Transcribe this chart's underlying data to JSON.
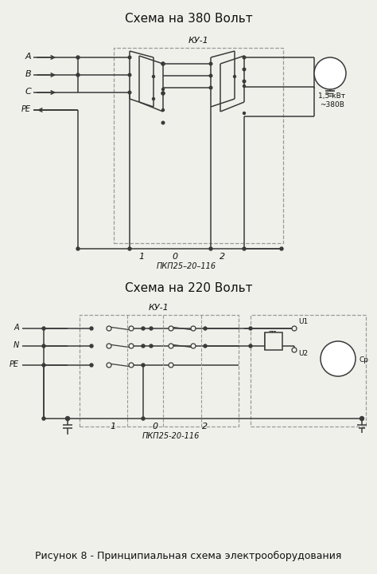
{
  "title1": "Схема на 380 Вольт",
  "title2": "Схема на 220 Вольт",
  "caption": "Рисунок 8 - Принципиальная схема электрооборудования",
  "bg": "#f0f0eb",
  "lc": "#3a3a3a",
  "dc": "#999999",
  "tc": "#111111",
  "fs_title": 11,
  "fs_label": 8,
  "fs_small": 6.5,
  "fs_caption": 9,
  "lw": 1.1
}
